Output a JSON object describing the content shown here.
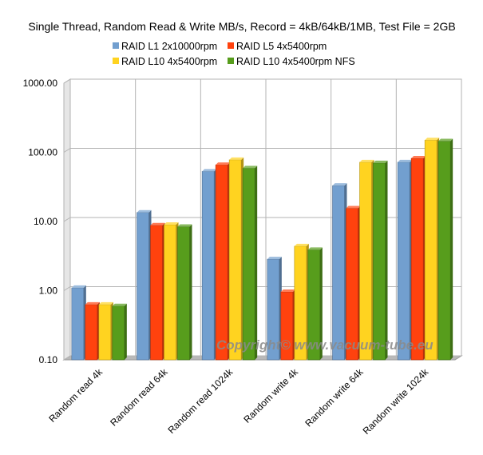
{
  "chart_data": {
    "type": "bar",
    "title": "Single Thread, Random Read & Write MB/s, Record = 4kB/64kB/1MB, Test File = 2GB",
    "yscale": "log",
    "ylim": [
      0.1,
      1000
    ],
    "yticks": [
      "0.10",
      "1.00",
      "10.00",
      "100.00",
      "1000.00"
    ],
    "grid": "both",
    "legend_position": "top",
    "categories": [
      "Random read 4k",
      "Random read 64k",
      "Random read 1024k",
      "Random write 4k",
      "Random write 64k",
      "Random write 1024k"
    ],
    "series": [
      {
        "name": "RAID L1 2x10000rpm",
        "color": "#729fcf",
        "values": [
          1.1,
          13.5,
          53,
          2.85,
          33,
          72
        ]
      },
      {
        "name": "RAID L5 4x5400rpm",
        "color": "#ff420e",
        "values": [
          0.63,
          8.8,
          66,
          0.96,
          15.5,
          82
        ]
      },
      {
        "name": "RAID L10 4x5400rpm",
        "color": "#ffd320",
        "values": [
          0.63,
          9.0,
          78,
          4.4,
          72,
          150
        ]
      },
      {
        "name": "RAID L10 4x5400rpm NFS",
        "color": "#579d1c",
        "values": [
          0.6,
          8.4,
          59,
          3.9,
          70,
          145
        ]
      }
    ],
    "watermark": "Copyright© www.vacuum-tube.eu"
  }
}
